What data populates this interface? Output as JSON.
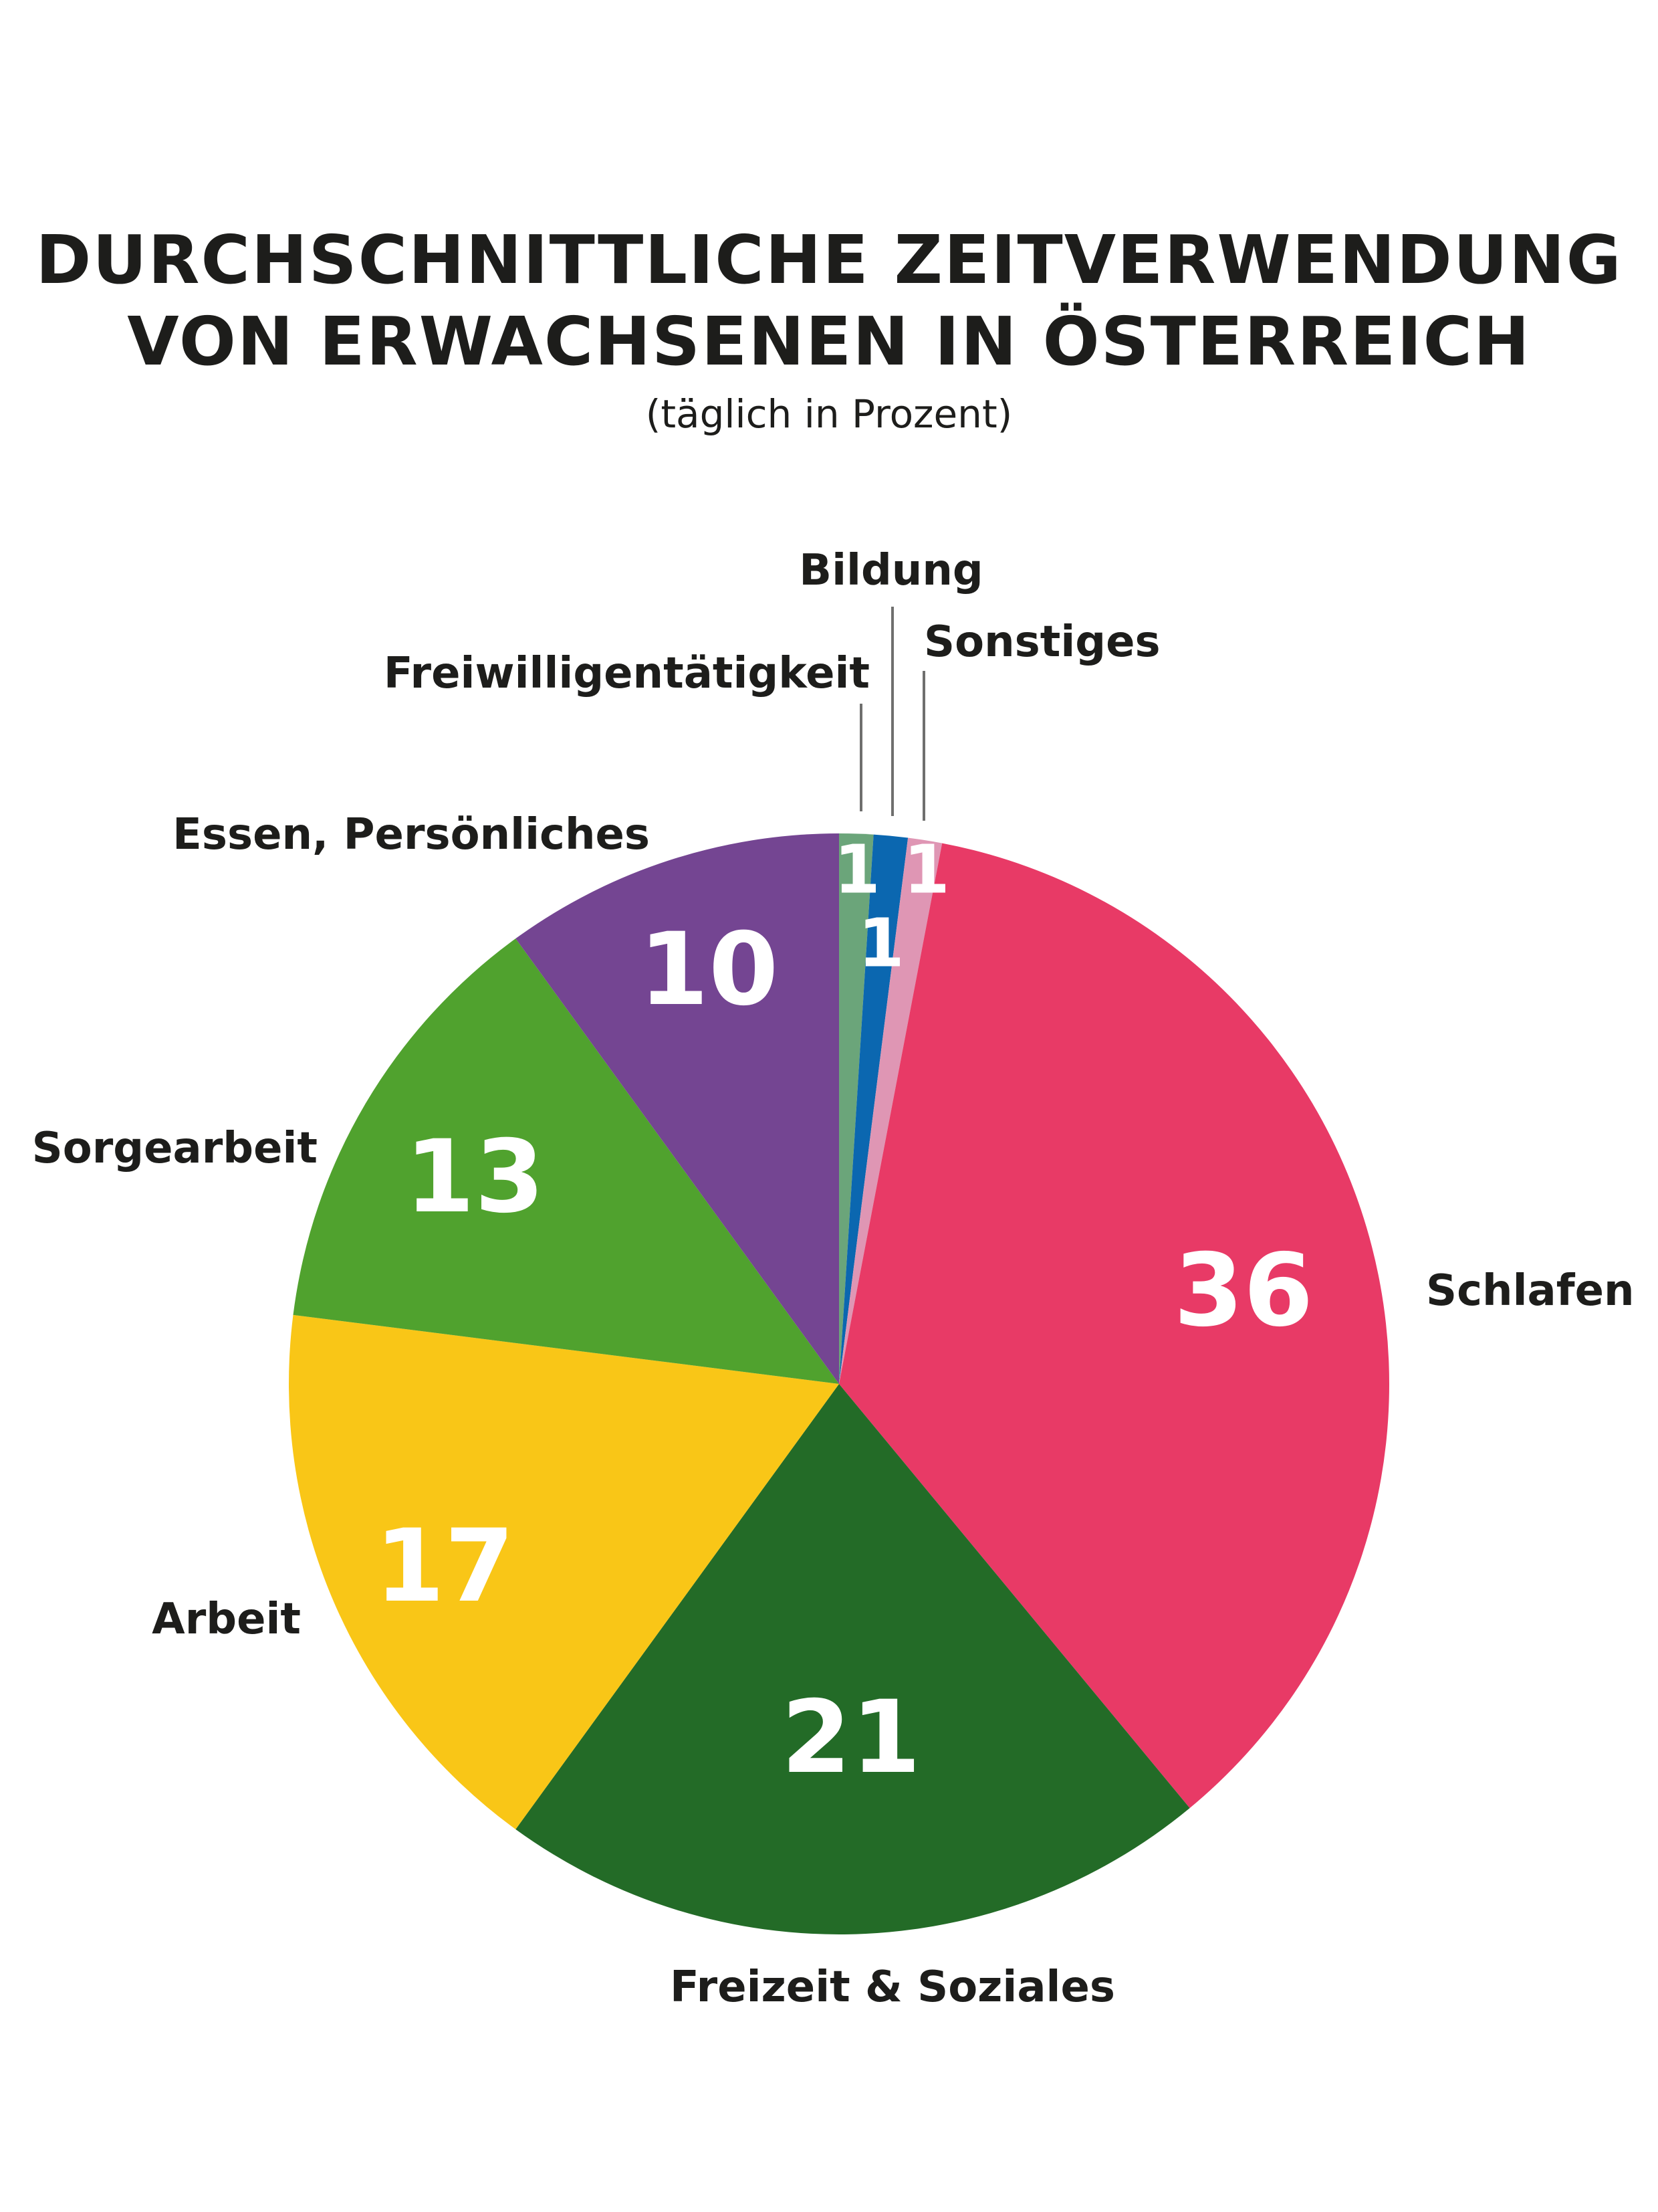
{
  "title_line1": "DURCHSCHNITTLICHE ZEITVERWENDUNG",
  "title_line2": "VON ERWACHSENEN IN ÖSTERREICH",
  "subtitle": "(täglich in Prozent)",
  "chart_data": {
    "type": "pie",
    "title": "DURCHSCHNITTLICHE ZEITVERWENDUNG VON ERWACHSENEN IN ÖSTERREICH",
    "subtitle": "(täglich in Prozent)",
    "start": "top, clockwise",
    "slices": [
      {
        "label": "Freiwilligentätigkeit",
        "value": 1,
        "color": "#6ba57a"
      },
      {
        "label": "Bildung",
        "value": 1,
        "color": "#0b67b0"
      },
      {
        "label": "Sonstiges",
        "value": 1,
        "color": "#df96b4"
      },
      {
        "label": "Schlafen",
        "value": 36,
        "color": "#e83a66"
      },
      {
        "label": "Freizeit & Soziales",
        "value": 21,
        "color": "#236b27"
      },
      {
        "label": "Arbeit",
        "value": 17,
        "color": "#f9c617"
      },
      {
        "label": "Sorgearbeit",
        "value": 13,
        "color": "#50a22e"
      },
      {
        "label": "Essen, Persönliches",
        "value": 10,
        "color": "#744592"
      }
    ]
  }
}
